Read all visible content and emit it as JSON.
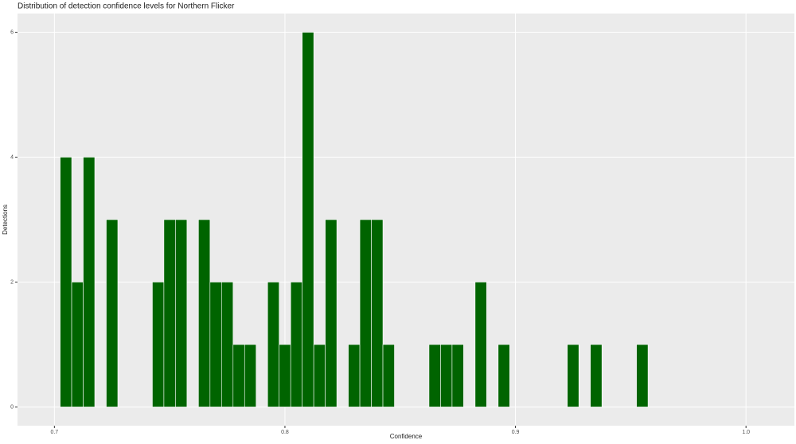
{
  "chart_data": {
    "type": "histogram",
    "title": "Distribution of detection confidence levels for Northern Flicker",
    "x_label": "Confidence",
    "y_label": "Detections",
    "bins": [
      0.7025,
      0.7075,
      0.7125,
      0.7175,
      0.7225,
      0.7275,
      0.7325,
      0.7375,
      0.7425,
      0.7475,
      0.7525,
      0.7575,
      0.7625,
      0.7675,
      0.7725,
      0.7775,
      0.7825,
      0.7875,
      0.7925,
      0.7975,
      0.8025,
      0.8075,
      0.8125,
      0.8175,
      0.8225,
      0.8275,
      0.8325,
      0.8375,
      0.8425,
      0.8475,
      0.8525,
      0.8575,
      0.8625,
      0.8675,
      0.8725,
      0.8775,
      0.8825,
      0.8875,
      0.8925,
      0.8975,
      0.9025,
      0.9075,
      0.9125,
      0.9175,
      0.9225,
      0.9275,
      0.9325,
      0.9375,
      0.9425,
      0.9475,
      0.9525,
      0.9575
    ],
    "values": [
      4,
      2,
      4,
      0,
      3,
      0,
      0,
      0,
      2,
      3,
      3,
      0,
      3,
      2,
      2,
      1,
      1,
      0,
      2,
      1,
      2,
      6,
      1,
      3,
      0,
      1,
      3,
      3,
      1,
      0,
      0,
      0,
      1,
      1,
      1,
      0,
      2,
      0,
      1,
      0,
      0,
      0,
      0,
      0,
      1,
      0,
      1,
      0,
      0,
      0,
      1
    ],
    "color": "#006400",
    "edge_color": "#ffffff",
    "background": "#ebebeb",
    "xlim": [
      0.684,
      1.021
    ],
    "ylim": [
      -0.3,
      6.3
    ],
    "xticks": [
      0.7,
      0.8,
      0.9,
      {
        "value": 1,
        "label": "1.0"
      }
    ],
    "yticks": [
      0,
      2,
      4,
      6
    ],
    "grid": true
  }
}
